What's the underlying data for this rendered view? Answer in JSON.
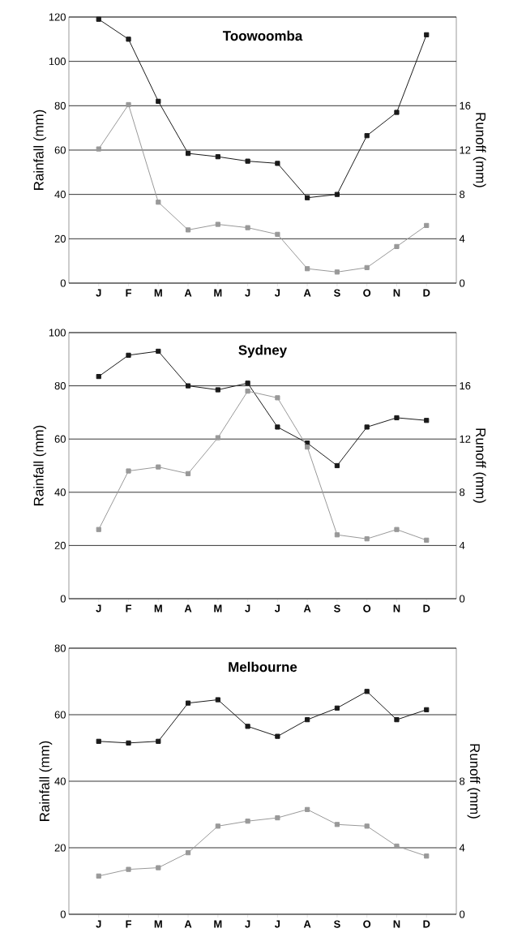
{
  "chart_data": [
    {
      "type": "line",
      "title": "Toowoomba",
      "ylabel": "Rainfall (mm)",
      "y2label": "Runoff (mm)",
      "categories": [
        "J",
        "F",
        "M",
        "A",
        "M",
        "J",
        "J",
        "A",
        "S",
        "O",
        "N",
        "D"
      ],
      "ylim": [
        0,
        120
      ],
      "yticks": [
        0,
        20,
        40,
        60,
        80,
        100,
        120
      ],
      "y2lim": [
        0,
        24
      ],
      "y2ticks": [
        0,
        4,
        8,
        12,
        16
      ],
      "grid": "y",
      "marker": "square",
      "line_style": "solid",
      "series": [
        {
          "color": "#1a1a1a",
          "values": [
            119,
            110,
            82,
            58.5,
            57,
            55,
            54,
            38.5,
            40,
            66.5,
            77,
            112
          ]
        },
        {
          "color": "#999999",
          "axis": "y2",
          "values": [
            12.1,
            16.1,
            7.3,
            4.8,
            5.3,
            5.0,
            4.4,
            1.3,
            1.0,
            1.4,
            3.3,
            5.2
          ]
        }
      ]
    },
    {
      "type": "line",
      "title": "Sydney",
      "ylabel": "Rainfall (mm)",
      "y2label": "Runoff (mm)",
      "categories": [
        "J",
        "F",
        "M",
        "A",
        "M",
        "J",
        "J",
        "A",
        "S",
        "O",
        "N",
        "D"
      ],
      "ylim": [
        0,
        100
      ],
      "yticks": [
        0,
        20,
        40,
        60,
        80,
        100
      ],
      "y2lim": [
        0,
        20
      ],
      "y2ticks": [
        0,
        4,
        8,
        12,
        16
      ],
      "grid": "y",
      "marker": "square",
      "line_style": "solid",
      "series": [
        {
          "color": "#1a1a1a",
          "values": [
            83.5,
            91.5,
            93,
            80,
            78.5,
            81,
            64.5,
            58.5,
            50,
            64.5,
            68,
            67
          ]
        },
        {
          "color": "#999999",
          "axis": "y2",
          "values": [
            5.2,
            9.6,
            9.9,
            9.4,
            12.1,
            15.6,
            15.1,
            11.4,
            4.8,
            4.5,
            5.2,
            4.4
          ]
        }
      ]
    },
    {
      "type": "line",
      "title": "Melbourne",
      "ylabel": "Rainfall (mm)",
      "y2label": "Runoff (mm)",
      "categories": [
        "J",
        "F",
        "M",
        "A",
        "M",
        "J",
        "J",
        "A",
        "S",
        "O",
        "N",
        "D"
      ],
      "ylim": [
        0,
        80
      ],
      "yticks": [
        0,
        20,
        40,
        60,
        80
      ],
      "y2lim": [
        0,
        16
      ],
      "y2ticks": [
        0,
        4,
        8
      ],
      "grid": "y",
      "marker": "square",
      "line_style": "solid",
      "series": [
        {
          "color": "#1a1a1a",
          "values": [
            52,
            51.5,
            52,
            63.5,
            64.5,
            56.5,
            53.5,
            58.5,
            62,
            67,
            58.5,
            61.5
          ]
        },
        {
          "color": "#999999",
          "axis": "y2",
          "values": [
            2.3,
            2.7,
            2.8,
            3.7,
            5.3,
            5.6,
            5.8,
            6.3,
            5.4,
            5.3,
            4.1,
            3.5
          ]
        }
      ]
    }
  ]
}
